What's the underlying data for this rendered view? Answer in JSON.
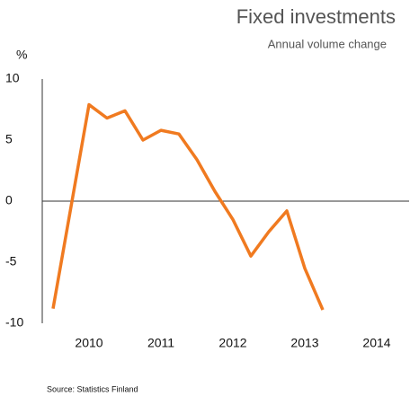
{
  "chart_data": {
    "type": "line",
    "title": "Fixed investments",
    "subtitle": "Annual volume change",
    "y_label": "%",
    "source": "Source: Statistics Finland",
    "x": [
      2009.5,
      2010,
      2010.25,
      2010.5,
      2010.75,
      2011,
      2011.25,
      2011.5,
      2011.75,
      2012,
      2012.25,
      2012.5,
      2012.75,
      2013,
      2013.25
    ],
    "series": [
      {
        "name": "Fixed investments",
        "color": "#f07a20",
        "values": [
          -8.8,
          7.9,
          6.8,
          7.4,
          5.0,
          5.8,
          5.5,
          3.4,
          0.8,
          -1.5,
          -4.5,
          -2.5,
          -0.8,
          -5.5,
          -8.9
        ]
      }
    ],
    "xlim": [
      2009.35,
      2014.45
    ],
    "xticks": [
      2010,
      2011,
      2012,
      2013,
      2014
    ],
    "ylim": [
      -10,
      10
    ],
    "yticks": [
      -10,
      -5,
      0,
      5,
      10
    ],
    "grid": false
  }
}
